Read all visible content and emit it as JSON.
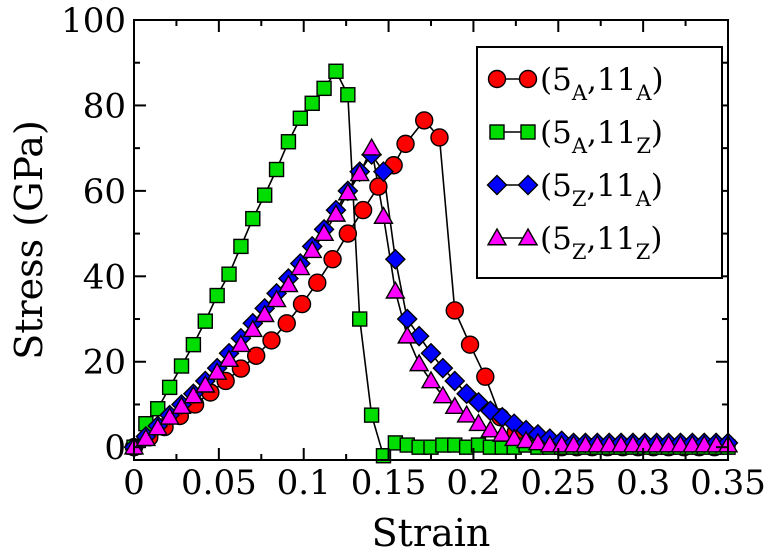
{
  "chart_data": {
    "type": "line",
    "xlabel": "Strain",
    "ylabel": "Stress (GPa)",
    "xlim": [
      0,
      0.35
    ],
    "ylim": [
      -3,
      100
    ],
    "xticks": [
      0,
      0.05,
      0.1,
      0.15,
      0.2,
      0.25,
      0.3,
      0.35
    ],
    "xtick_labels": [
      "0",
      "0.05",
      "0.1",
      "0.15",
      "0.2",
      "0.25",
      "0.3",
      "0.35"
    ],
    "yticks": [
      0,
      20,
      40,
      60,
      80,
      100
    ],
    "ytick_labels": [
      "0",
      "20",
      "40",
      "60",
      "80",
      "100"
    ],
    "grid": false,
    "legend_position": "top-right",
    "series": [
      {
        "name": "(5A,11A)",
        "legend": {
          "open": "(",
          "n1": "5",
          "s1": "A",
          "sep": ",",
          "n2": "11",
          "s2": "A",
          "close": ")"
        },
        "marker": "circle",
        "color": "#ff0000",
        "points": [
          [
            0,
            0
          ],
          [
            0.009,
            2.3
          ],
          [
            0.018,
            4.7
          ],
          [
            0.027,
            7.3
          ],
          [
            0.036,
            10.0
          ],
          [
            0.045,
            12.8
          ],
          [
            0.054,
            15.5
          ],
          [
            0.063,
            18.4
          ],
          [
            0.072,
            21.4
          ],
          [
            0.081,
            25.0
          ],
          [
            0.09,
            29.0
          ],
          [
            0.099,
            33.5
          ],
          [
            0.108,
            38.5
          ],
          [
            0.117,
            44.0
          ],
          [
            0.126,
            50.0
          ],
          [
            0.135,
            55.5
          ],
          [
            0.144,
            61.0
          ],
          [
            0.153,
            66.0
          ],
          [
            0.16,
            71.0
          ],
          [
            0.171,
            76.5
          ],
          [
            0.18,
            72.5
          ],
          [
            0.189,
            32.0
          ],
          [
            0.198,
            24.0
          ],
          [
            0.207,
            16.5
          ],
          [
            0.216,
            7.0
          ],
          [
            0.225,
            3.5
          ],
          [
            0.234,
            1.5
          ],
          [
            0.243,
            0.5
          ],
          [
            0.252,
            0.0
          ],
          [
            0.261,
            0.0
          ],
          [
            0.27,
            0.0
          ],
          [
            0.279,
            0.0
          ],
          [
            0.288,
            0.0
          ],
          [
            0.297,
            0.0
          ],
          [
            0.306,
            0.0
          ],
          [
            0.315,
            0.0
          ],
          [
            0.324,
            0.0
          ],
          [
            0.333,
            0.0
          ],
          [
            0.342,
            0.0
          ],
          [
            0.351,
            0.0
          ]
        ]
      },
      {
        "name": "(5A,11Z)",
        "legend": {
          "open": "(",
          "n1": "5",
          "s1": "A",
          "sep": ",",
          "n2": "11",
          "s2": "Z",
          "close": ")"
        },
        "marker": "square",
        "color": "#00dd00",
        "points": [
          [
            0,
            0
          ],
          [
            0.007,
            5.5
          ],
          [
            0.014,
            9.0
          ],
          [
            0.021,
            14.0
          ],
          [
            0.028,
            19.0
          ],
          [
            0.035,
            24.0
          ],
          [
            0.042,
            29.5
          ],
          [
            0.049,
            35.5
          ],
          [
            0.056,
            40.5
          ],
          [
            0.063,
            47.0
          ],
          [
            0.07,
            53.5
          ],
          [
            0.077,
            59.0
          ],
          [
            0.084,
            65.0
          ],
          [
            0.091,
            71.5
          ],
          [
            0.098,
            77.0
          ],
          [
            0.105,
            80.5
          ],
          [
            0.112,
            84.0
          ],
          [
            0.119,
            88.0
          ],
          [
            0.126,
            82.5
          ],
          [
            0.133,
            30.0
          ],
          [
            0.14,
            7.5
          ],
          [
            0.147,
            -2.0
          ],
          [
            0.154,
            1.0
          ],
          [
            0.161,
            0.5
          ],
          [
            0.168,
            0.0
          ],
          [
            0.175,
            0.0
          ],
          [
            0.182,
            0.5
          ],
          [
            0.189,
            0.5
          ],
          [
            0.196,
            0.0
          ],
          [
            0.203,
            0.5
          ],
          [
            0.21,
            0.0
          ],
          [
            0.217,
            0.0
          ],
          [
            0.224,
            0.0
          ],
          [
            0.231,
            0.5
          ],
          [
            0.238,
            0.0
          ],
          [
            0.245,
            0.0
          ],
          [
            0.252,
            0.0
          ],
          [
            0.259,
            0.0
          ],
          [
            0.266,
            0.0
          ],
          [
            0.273,
            0.0
          ],
          [
            0.28,
            0.0
          ],
          [
            0.287,
            0.0
          ],
          [
            0.294,
            0.0
          ],
          [
            0.301,
            0.0
          ],
          [
            0.308,
            0.0
          ],
          [
            0.315,
            0.0
          ],
          [
            0.322,
            0.0
          ],
          [
            0.329,
            0.0
          ],
          [
            0.336,
            0.0
          ],
          [
            0.343,
            0.0
          ],
          [
            0.35,
            0.0
          ]
        ]
      },
      {
        "name": "(5Z,11A)",
        "legend": {
          "open": "(",
          "n1": "5",
          "s1": "Z",
          "sep": ",",
          "n2": "11",
          "s2": "A",
          "close": ")"
        },
        "marker": "diamond",
        "color": "#0000ff",
        "points": [
          [
            0,
            0
          ],
          [
            0.007,
            2.5
          ],
          [
            0.014,
            5.0
          ],
          [
            0.021,
            7.5
          ],
          [
            0.028,
            10.0
          ],
          [
            0.035,
            12.5
          ],
          [
            0.042,
            15.5
          ],
          [
            0.049,
            18.5
          ],
          [
            0.056,
            22.0
          ],
          [
            0.063,
            25.5
          ],
          [
            0.07,
            29.0
          ],
          [
            0.077,
            32.5
          ],
          [
            0.084,
            36.0
          ],
          [
            0.091,
            39.5
          ],
          [
            0.098,
            43.0
          ],
          [
            0.105,
            47.0
          ],
          [
            0.112,
            51.0
          ],
          [
            0.119,
            55.5
          ],
          [
            0.126,
            60.0
          ],
          [
            0.133,
            64.5
          ],
          [
            0.14,
            68.5
          ],
          [
            0.147,
            64.5
          ],
          [
            0.154,
            44.0
          ],
          [
            0.161,
            30.0
          ],
          [
            0.168,
            26.0
          ],
          [
            0.175,
            22.0
          ],
          [
            0.182,
            18.5
          ],
          [
            0.189,
            15.5
          ],
          [
            0.196,
            12.5
          ],
          [
            0.203,
            10.5
          ],
          [
            0.21,
            8.5
          ],
          [
            0.217,
            7.0
          ],
          [
            0.224,
            5.5
          ],
          [
            0.231,
            4.0
          ],
          [
            0.238,
            3.0
          ],
          [
            0.245,
            2.0
          ],
          [
            0.252,
            1.5
          ],
          [
            0.259,
            1.0
          ],
          [
            0.266,
            1.0
          ],
          [
            0.273,
            1.0
          ],
          [
            0.28,
            1.0
          ],
          [
            0.287,
            1.0
          ],
          [
            0.294,
            1.0
          ],
          [
            0.301,
            1.0
          ],
          [
            0.308,
            1.0
          ],
          [
            0.315,
            1.0
          ],
          [
            0.322,
            1.0
          ],
          [
            0.329,
            1.0
          ],
          [
            0.336,
            1.0
          ],
          [
            0.343,
            1.0
          ],
          [
            0.35,
            1.0
          ]
        ]
      },
      {
        "name": "(5Z,11Z)",
        "legend": {
          "open": "(",
          "n1": "5",
          "s1": "Z",
          "sep": ",",
          "n2": "11",
          "s2": "Z",
          "close": ")"
        },
        "marker": "triangle",
        "color": "#ff00ff",
        "points": [
          [
            0,
            0
          ],
          [
            0.007,
            2.0
          ],
          [
            0.014,
            4.5
          ],
          [
            0.021,
            7.0
          ],
          [
            0.028,
            9.5
          ],
          [
            0.035,
            12.0
          ],
          [
            0.042,
            14.5
          ],
          [
            0.049,
            17.5
          ],
          [
            0.056,
            20.5
          ],
          [
            0.063,
            24.0
          ],
          [
            0.07,
            27.5
          ],
          [
            0.077,
            31.0
          ],
          [
            0.084,
            34.5
          ],
          [
            0.091,
            38.0
          ],
          [
            0.098,
            42.0
          ],
          [
            0.105,
            46.0
          ],
          [
            0.112,
            50.0
          ],
          [
            0.119,
            54.5
          ],
          [
            0.126,
            59.5
          ],
          [
            0.133,
            64.0
          ],
          [
            0.14,
            70.0
          ],
          [
            0.147,
            54.0
          ],
          [
            0.154,
            36.5
          ],
          [
            0.161,
            26.0
          ],
          [
            0.168,
            19.5
          ],
          [
            0.175,
            15.5
          ],
          [
            0.182,
            12.0
          ],
          [
            0.189,
            9.5
          ],
          [
            0.196,
            7.5
          ],
          [
            0.203,
            5.5
          ],
          [
            0.21,
            4.0
          ],
          [
            0.217,
            3.0
          ],
          [
            0.224,
            2.0
          ],
          [
            0.231,
            1.5
          ],
          [
            0.238,
            1.0
          ],
          [
            0.245,
            0.5
          ],
          [
            0.252,
            0.5
          ],
          [
            0.259,
            0.5
          ],
          [
            0.266,
            0.5
          ],
          [
            0.273,
            0.5
          ],
          [
            0.28,
            0.5
          ],
          [
            0.287,
            0.5
          ],
          [
            0.294,
            0.5
          ],
          [
            0.301,
            0.5
          ],
          [
            0.308,
            0.5
          ],
          [
            0.315,
            0.5
          ],
          [
            0.322,
            0.5
          ],
          [
            0.329,
            0.5
          ],
          [
            0.336,
            0.5
          ],
          [
            0.343,
            0.5
          ],
          [
            0.35,
            0.5
          ]
        ]
      }
    ]
  }
}
